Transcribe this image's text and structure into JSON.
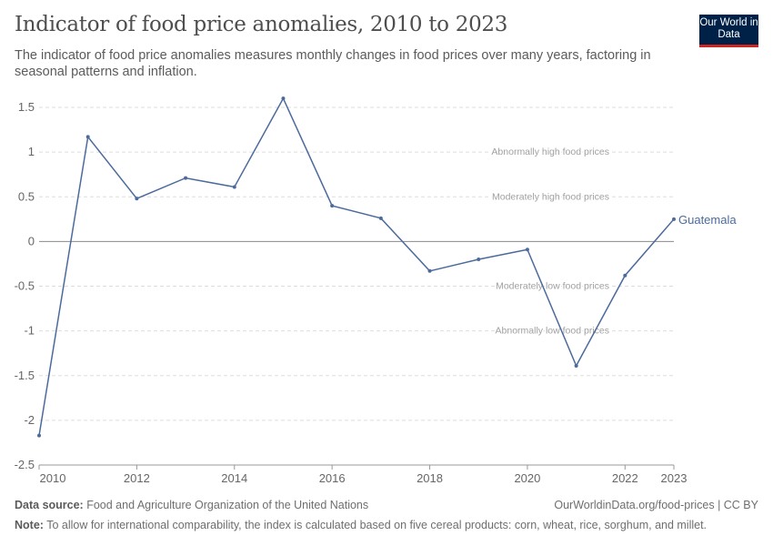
{
  "header": {
    "title": "Indicator of food price anomalies, 2010 to 2023",
    "subtitle": "The indicator of food price anomalies measures monthly changes in food prices over many years, factoring in seasonal patterns and inflation.",
    "logo": "Our World in Data"
  },
  "chart_data": {
    "type": "line",
    "title": "Indicator of food price anomalies, 2010 to 2023",
    "x": [
      2010,
      2011,
      2012,
      2013,
      2014,
      2015,
      2016,
      2017,
      2018,
      2019,
      2020,
      2021,
      2022,
      2023
    ],
    "series": [
      {
        "name": "Guatemala",
        "color": "#4c6a9c",
        "values": [
          -2.17,
          1.17,
          0.48,
          0.71,
          0.61,
          1.6,
          0.4,
          0.26,
          -0.33,
          -0.2,
          -0.09,
          -1.39,
          -0.38,
          0.25
        ]
      }
    ],
    "xlim": [
      2010,
      2023
    ],
    "ylim": [
      -2.5,
      1.5
    ],
    "xticks": [
      "2010",
      "2012",
      "2014",
      "2016",
      "2018",
      "2020",
      "2022",
      "2023"
    ],
    "yticks": [
      "1.5",
      "1",
      "0.5",
      "0",
      "-0.5",
      "-1",
      "-1.5",
      "-2",
      "-2.5"
    ],
    "grid": true,
    "annotations": [
      {
        "y": 1,
        "text": "Abnormally high food prices"
      },
      {
        "y": 0.5,
        "text": "Moderately high food prices"
      },
      {
        "y": -0.5,
        "text": "Moderately low food prices"
      },
      {
        "y": -1,
        "text": "Abnormally low food prices"
      }
    ]
  },
  "footer": {
    "source_label": "Data source:",
    "source": "Food and Agriculture Organization of the United Nations",
    "credit": "OurWorldinData.org/food-prices | CC BY",
    "note_label": "Note:",
    "note": "To allow for international comparability, the index is calculated based on five cereal products: corn, wheat, rice, sorghum, and millet."
  }
}
